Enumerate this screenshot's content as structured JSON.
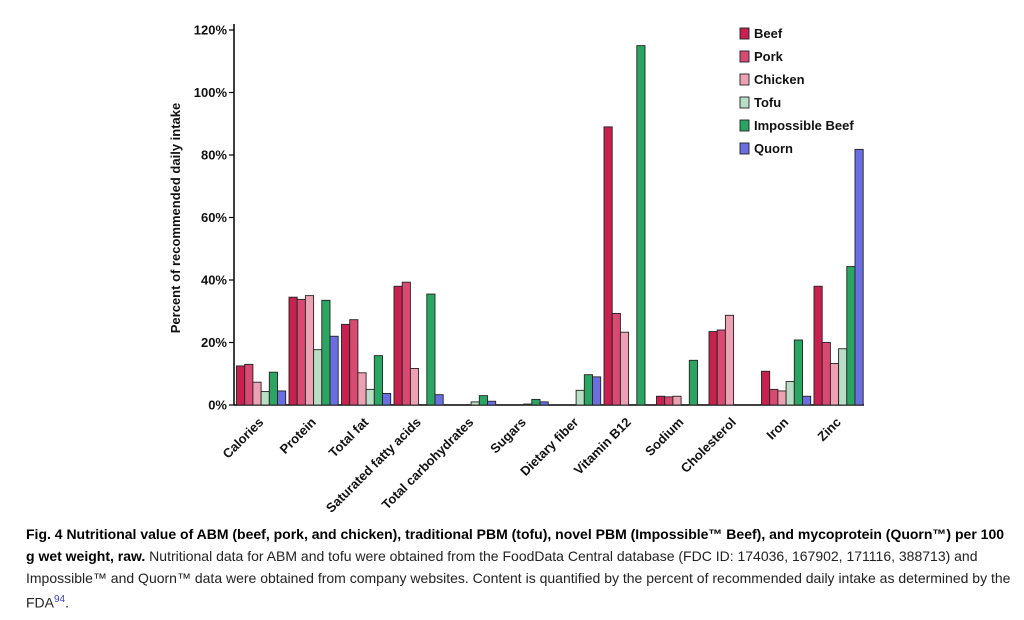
{
  "chart_data": {
    "type": "bar",
    "ylabel": "Percent of recommended daily intake",
    "xlabel": "",
    "ylim": [
      0,
      120
    ],
    "yticks": [
      "0%",
      "20%",
      "40%",
      "60%",
      "80%",
      "100%",
      "120%"
    ],
    "legend_position": "top-right",
    "categories": [
      "Calories",
      "Protein",
      "Total fat",
      "Saturated fatty acids",
      "Total carbohydrates",
      "Sugars",
      "Dietary fiber",
      "Vitamin B12",
      "Sodium",
      "Cholesterol",
      "Iron",
      "Zinc"
    ],
    "series": [
      {
        "name": "Beef",
        "color": "#c8204f",
        "values": [
          12.5,
          34.5,
          25.8,
          38.0,
          0,
          0,
          0,
          89.0,
          2.8,
          23.5,
          10.8,
          38.0
        ]
      },
      {
        "name": "Pork",
        "color": "#d94a72",
        "values": [
          13.0,
          33.8,
          27.3,
          39.3,
          0,
          0,
          0,
          29.3,
          2.6,
          24.0,
          5.0,
          20.0
        ]
      },
      {
        "name": "Chicken",
        "color": "#eda2b4",
        "values": [
          7.3,
          35.0,
          10.3,
          11.7,
          0,
          0,
          0,
          23.3,
          2.8,
          28.7,
          4.5,
          13.3
        ]
      },
      {
        "name": "Tofu",
        "color": "#b9ddc5",
        "values": [
          4.3,
          17.7,
          5.0,
          0,
          1.0,
          0.3,
          4.7,
          0,
          0,
          0,
          7.5,
          18.0
        ]
      },
      {
        "name": "Impossible Beef",
        "color": "#2aa562",
        "values": [
          10.5,
          33.5,
          15.8,
          35.5,
          3.0,
          1.8,
          9.7,
          115.0,
          14.3,
          0,
          20.8,
          44.3
        ]
      },
      {
        "name": "Quorn",
        "color": "#6b6ee0",
        "values": [
          4.5,
          22.0,
          3.7,
          3.3,
          1.2,
          1.0,
          9.0,
          0,
          0,
          0,
          2.8,
          81.8
        ]
      }
    ]
  },
  "caption": {
    "lead": "Fig. 4 Nutritional value of ABM (beef, pork, and chicken), traditional PBM (tofu), novel PBM (Impossible™ Beef), and mycoprotein (Quorn™) per 100 g wet weight, raw.",
    "body": " Nutritional data for ABM and tofu were obtained from the FoodData Central database (FDC ID: 174036, 167902, 171116, 388713) and Impossible™ and Quorn™ data were obtained from company websites. Content is quantified by the percent of recommended daily intake as determined by the FDA",
    "ref": "94",
    "end": "."
  }
}
